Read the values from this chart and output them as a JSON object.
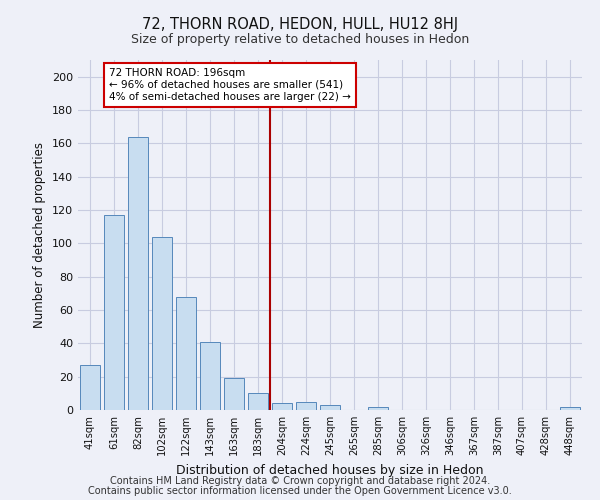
{
  "title": "72, THORN ROAD, HEDON, HULL, HU12 8HJ",
  "subtitle": "Size of property relative to detached houses in Hedon",
  "xlabel": "Distribution of detached houses by size in Hedon",
  "ylabel": "Number of detached properties",
  "bar_labels": [
    "41sqm",
    "61sqm",
    "82sqm",
    "102sqm",
    "122sqm",
    "143sqm",
    "163sqm",
    "183sqm",
    "204sqm",
    "224sqm",
    "245sqm",
    "265sqm",
    "285sqm",
    "306sqm",
    "326sqm",
    "346sqm",
    "367sqm",
    "387sqm",
    "407sqm",
    "428sqm",
    "448sqm"
  ],
  "bar_heights": [
    27,
    117,
    164,
    104,
    68,
    41,
    19,
    10,
    4,
    5,
    3,
    0,
    2,
    0,
    0,
    0,
    0,
    0,
    0,
    0,
    2
  ],
  "bar_color": "#c8ddf0",
  "bar_edge_color": "#5588bb",
  "vline_x": 7.5,
  "vline_color": "#aa0000",
  "annotation_line1": "72 THORN ROAD: 196sqm",
  "annotation_line2": "← 96% of detached houses are smaller (541)",
  "annotation_line3": "4% of semi-detached houses are larger (22) →",
  "annotation_box_edge": "#cc0000",
  "ylim": [
    0,
    210
  ],
  "yticks": [
    0,
    20,
    40,
    60,
    80,
    100,
    120,
    140,
    160,
    180,
    200
  ],
  "footer1": "Contains HM Land Registry data © Crown copyright and database right 2024.",
  "footer2": "Contains public sector information licensed under the Open Government Licence v3.0.",
  "bg_color": "#eef0f8",
  "grid_color": "#c8cce0"
}
